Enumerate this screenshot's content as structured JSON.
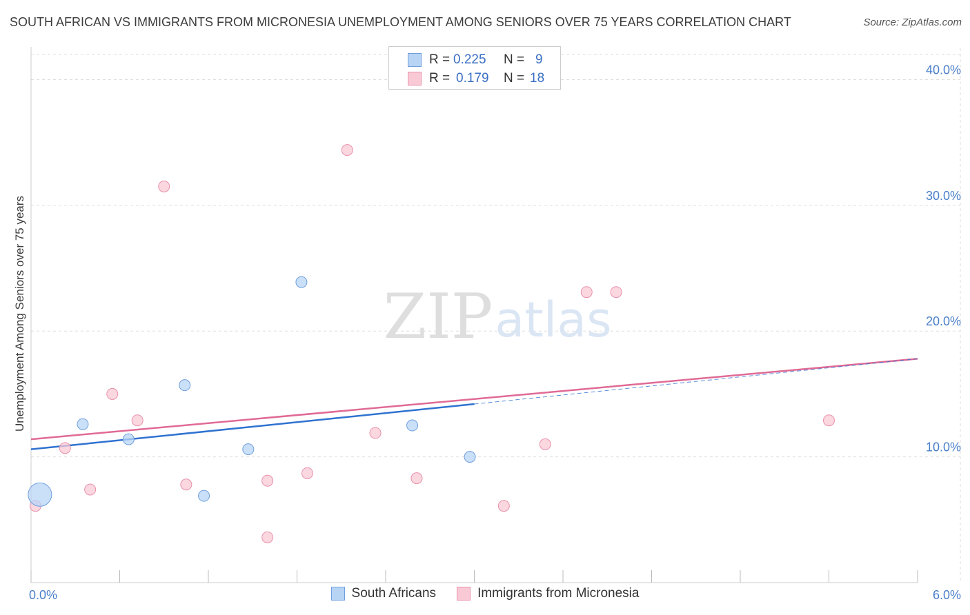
{
  "header": {
    "title": "SOUTH AFRICAN VS IMMIGRANTS FROM MICRONESIA UNEMPLOYMENT AMONG SENIORS OVER 75 YEARS CORRELATION CHART",
    "source": "Source: ZipAtlas.com"
  },
  "watermark": {
    "zip": "ZIP",
    "atlas": "atlas"
  },
  "stats_legend": {
    "r_label": "R =",
    "n_label": "N =",
    "rows": [
      {
        "series": "South Africans",
        "r": "0.225",
        "n": "9"
      },
      {
        "series": "Immigrants from Micronesia",
        "r": "0.179",
        "n": "18"
      }
    ]
  },
  "colors": {
    "south_africans_fill": "#b8d4f5",
    "south_africans_stroke": "#6f9fdc",
    "south_africans_line": "#2f72d0",
    "micronesia_fill": "#f9c9d6",
    "micronesia_stroke": "#e890aa",
    "micronesia_line": "#e06a95",
    "axis_label": "#4a7fc9",
    "grid": "#dddddd"
  },
  "chart_data": {
    "type": "scatter",
    "title": "SOUTH AFRICAN VS IMMIGRANTS FROM MICRONESIA UNEMPLOYMENT AMONG SENIORS OVER 75 YEARS CORRELATION CHART",
    "xlabel": "",
    "ylabel": "Unemployment Among Seniors over 75 years",
    "xlim": [
      0,
      6
    ],
    "ylim": [
      0,
      42
    ],
    "x_tick_labels": [
      "0.0%",
      "6.0%"
    ],
    "y_ticks": [
      10,
      20,
      30,
      40
    ],
    "y_tick_labels": [
      "10.0%",
      "20.0%",
      "30.0%",
      "40.0%"
    ],
    "legend_position": "bottom",
    "series": [
      {
        "name": "South Africans",
        "points": [
          {
            "x": 0.06,
            "y": 7.0,
            "size": "large"
          },
          {
            "x": 0.35,
            "y": 12.6
          },
          {
            "x": 0.66,
            "y": 11.4
          },
          {
            "x": 1.04,
            "y": 15.7
          },
          {
            "x": 1.17,
            "y": 6.9
          },
          {
            "x": 1.47,
            "y": 10.6
          },
          {
            "x": 1.83,
            "y": 23.9
          },
          {
            "x": 2.58,
            "y": 12.5
          },
          {
            "x": 2.97,
            "y": 10.0
          }
        ],
        "trend": {
          "x0": 0,
          "y0": 10.6,
          "x1": 3.0,
          "y1": 14.2,
          "dashed_to_x": 6.0,
          "dashed_to_y": 17.8
        }
      },
      {
        "name": "Immigrants from Micronesia",
        "points": [
          {
            "x": 0.03,
            "y": 6.1
          },
          {
            "x": 0.23,
            "y": 10.7
          },
          {
            "x": 0.4,
            "y": 7.4
          },
          {
            "x": 0.55,
            "y": 15.0
          },
          {
            "x": 0.72,
            "y": 12.9
          },
          {
            "x": 0.9,
            "y": 31.5
          },
          {
            "x": 1.05,
            "y": 7.8
          },
          {
            "x": 1.6,
            "y": 8.1
          },
          {
            "x": 1.6,
            "y": 3.6
          },
          {
            "x": 1.87,
            "y": 8.7
          },
          {
            "x": 2.14,
            "y": 34.4
          },
          {
            "x": 2.33,
            "y": 11.9
          },
          {
            "x": 2.61,
            "y": 8.3
          },
          {
            "x": 3.2,
            "y": 6.1
          },
          {
            "x": 3.48,
            "y": 11.0
          },
          {
            "x": 3.76,
            "y": 23.1
          },
          {
            "x": 3.96,
            "y": 23.1
          },
          {
            "x": 5.4,
            "y": 12.9
          }
        ],
        "trend": {
          "x0": 0,
          "y0": 11.4,
          "x1": 6.0,
          "y1": 17.8
        }
      }
    ]
  }
}
